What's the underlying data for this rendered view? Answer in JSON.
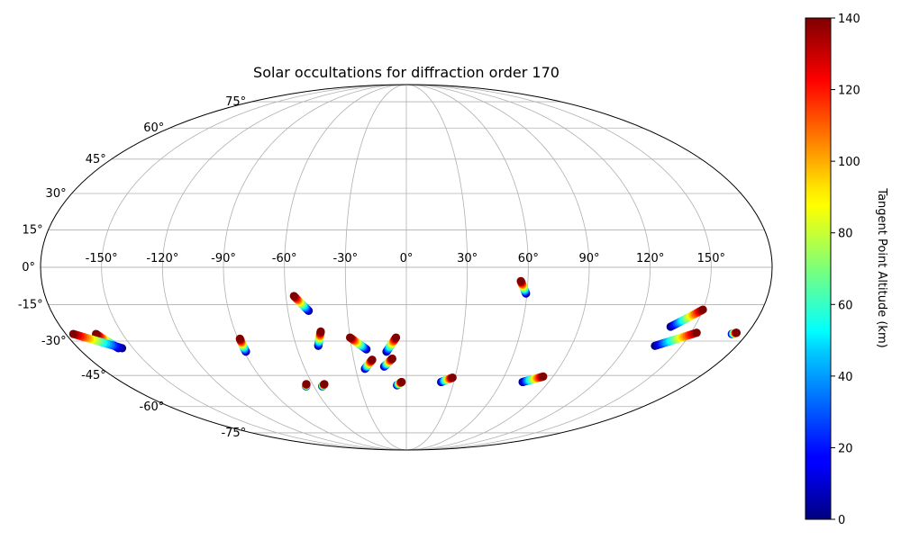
{
  "chart_data": {
    "type": "scatter",
    "title": "Solar occultations for diffraction order 170",
    "projection": "mollweide",
    "grid": true,
    "longitude_ticks": [
      -150,
      -120,
      -90,
      -60,
      -30,
      0,
      30,
      60,
      90,
      120,
      150
    ],
    "longitude_tick_labels": [
      "-150°",
      "-120°",
      "-90°",
      "-60°",
      "-30°",
      "0°",
      "30°",
      "60°",
      "90°",
      "120°",
      "150°"
    ],
    "latitude_ticks": [
      75,
      60,
      45,
      30,
      15,
      0,
      -15,
      -30,
      -45,
      -60,
      -75
    ],
    "latitude_tick_labels": [
      "75°",
      "60°",
      "45°",
      "30°",
      "15°",
      "0°",
      "-15°",
      "-30°",
      "-45°",
      "-60°",
      "-75°"
    ],
    "colorbar": {
      "label": "Tangent Point Altitude (km)",
      "range": [
        0,
        140
      ],
      "ticks": [
        0,
        20,
        40,
        60,
        80,
        100,
        120,
        140
      ],
      "tick_labels": [
        "0",
        "20",
        "40",
        "60",
        "80",
        "100",
        "120",
        "140"
      ],
      "colormap": "jet"
    },
    "series": [
      {
        "lon_bottom": 59.5,
        "lat_bottom": -10.5,
        "lon_top": 56.5,
        "lat_top": -5.5
      },
      {
        "lon_bottom": -49.5,
        "lat_bottom": -17.5,
        "lon_top": -56.0,
        "lat_top": -11.5
      },
      {
        "lon_bottom": -48.0,
        "lat_bottom": -32.0,
        "lon_top": -45.0,
        "lat_top": -26.0
      },
      {
        "lon_bottom": -22.0,
        "lat_bottom": -33.5,
        "lon_top": -30.0,
        "lat_top": -28.5
      },
      {
        "lon_bottom": -11.0,
        "lat_bottom": -34.5,
        "lon_top": -5.5,
        "lat_top": -28.5
      },
      {
        "lon_bottom": -24.5,
        "lat_bottom": -42.0,
        "lon_top": -19.5,
        "lat_top": -38.0
      },
      {
        "lon_bottom": -13.0,
        "lat_bottom": -41.0,
        "lon_top": -8.0,
        "lat_top": -37.5
      },
      {
        "lon_bottom": -6.0,
        "lat_bottom": -49.5,
        "lon_top": -3.0,
        "lat_top": -48.0
      },
      {
        "lon_bottom": -89.0,
        "lat_bottom": -34.5,
        "lon_top": -89.0,
        "lat_top": -29.0
      },
      {
        "lon_bottom": -158.0,
        "lat_bottom": -33.0,
        "lon_top": -164.0,
        "lat_top": -27.0
      },
      {
        "lon_bottom": -156.0,
        "lat_bottom": -33.0,
        "lon_top": -176.0,
        "lat_top": -27.0
      },
      {
        "lon_bottom": -65.0,
        "lat_bottom": -50.0,
        "lon_top": -64.0,
        "lat_top": -49.0
      },
      {
        "lon_bottom": -54.5,
        "lat_bottom": -50.0,
        "lon_top": -52.5,
        "lat_top": -49.0
      },
      {
        "lon_bottom": 22.0,
        "lat_bottom": -48.0,
        "lon_top": 28.5,
        "lat_top": -46.0
      },
      {
        "lon_bottom": 73.5,
        "lat_bottom": -48.0,
        "lon_top": 84.0,
        "lat_top": -45.5
      },
      {
        "lon_bottom": 137.5,
        "lat_bottom": -24.0,
        "lon_top": 150.0,
        "lat_top": -17.0
      },
      {
        "lon_bottom": 135.5,
        "lat_bottom": -32.0,
        "lon_top": 153.0,
        "lat_top": -26.5
      },
      {
        "lon_bottom": 172.0,
        "lat_bottom": -27.0,
        "lon_top": 174.0,
        "lat_top": -26.5
      }
    ]
  }
}
